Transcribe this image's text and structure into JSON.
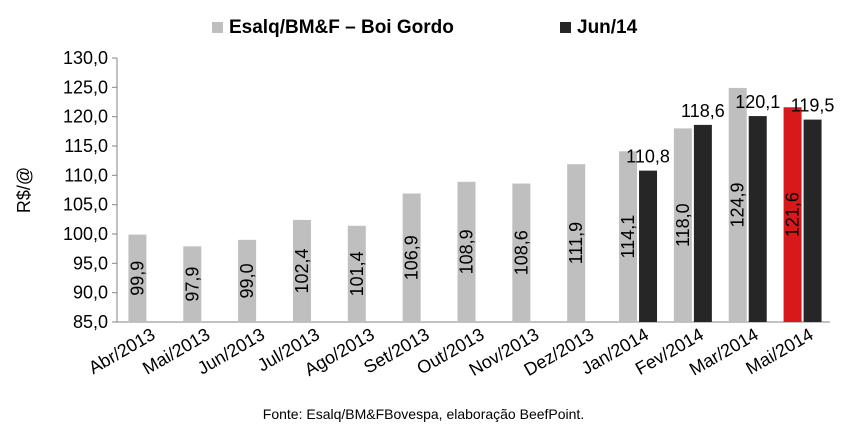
{
  "chart_data": {
    "type": "bar",
    "ylabel": "R$/@",
    "ylim": [
      85,
      130
    ],
    "yticks": [
      "85,0",
      "90,0",
      "95,0",
      "100,0",
      "105,0",
      "110,0",
      "115,0",
      "120,0",
      "125,0",
      "130,0"
    ],
    "categories": [
      "Abr/2013",
      "Mai/2013",
      "Jun/2013",
      "Jul/2013",
      "Ago/2013",
      "Set/2013",
      "Out/2013",
      "Nov/2013",
      "Dez/2013",
      "Jan/2014",
      "Fev/2014",
      "Mar/2014",
      "Mai/2014"
    ],
    "legend_position": "top",
    "series": [
      {
        "name": "Esalq/BM&F – Boi Gordo",
        "color": "#bfbfbf",
        "values": [
          99.9,
          97.9,
          99.0,
          102.4,
          101.4,
          106.9,
          108.9,
          108.6,
          111.9,
          114.1,
          118.0,
          124.9,
          121.6
        ],
        "labels": [
          "99,9",
          "97,9",
          "99,0",
          "102,4",
          "101,4",
          "106,9",
          "108,9",
          "108,6",
          "111,9",
          "114,1",
          "118,0",
          "124,9",
          "121,6"
        ],
        "highlight": {
          "index": 12,
          "color": "#d7191c"
        }
      },
      {
        "name": "Jun/14",
        "color": "#262626",
        "values": [
          null,
          null,
          null,
          null,
          null,
          null,
          null,
          null,
          null,
          110.8,
          118.6,
          120.1,
          119.5
        ],
        "labels": [
          null,
          null,
          null,
          null,
          null,
          null,
          null,
          null,
          null,
          "110,8",
          "118,6",
          "120,1",
          "119,5"
        ]
      }
    ],
    "source": "Fonte: Esalq/BM&FBovespa, elaboração BeefPoint."
  }
}
